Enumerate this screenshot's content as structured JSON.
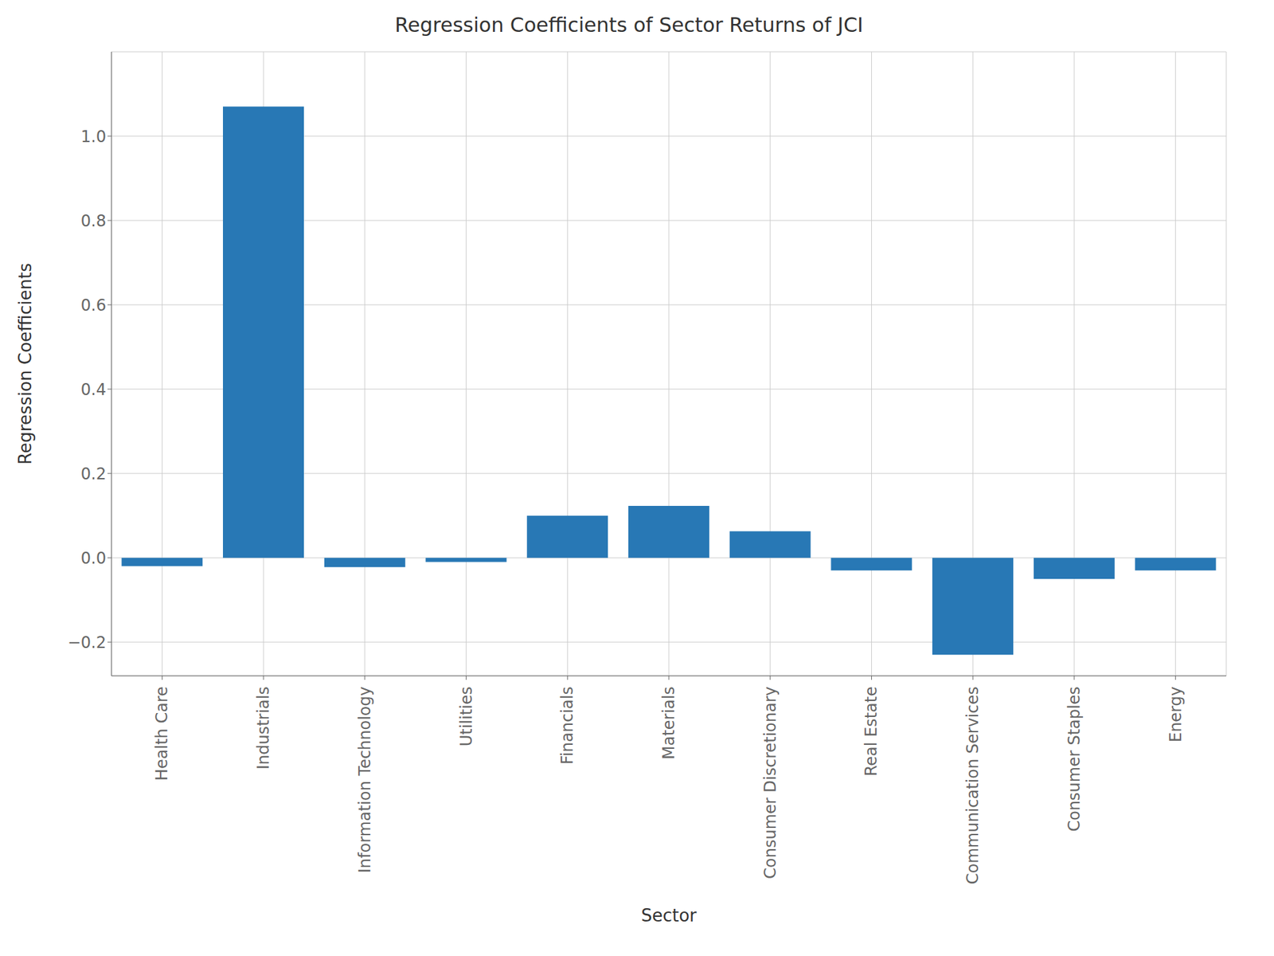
{
  "chart_data": {
    "type": "bar",
    "title": "Regression Coefficients of Sector Returns of JCI",
    "xlabel": "Sector",
    "ylabel": "Regression Coefficients",
    "categories": [
      "Health Care",
      "Industrials",
      "Information Technology",
      "Utilities",
      "Financials",
      "Materials",
      "Consumer Discretionary",
      "Real Estate",
      "Communication Services",
      "Consumer Staples",
      "Energy"
    ],
    "values": [
      -0.02,
      1.07,
      -0.022,
      -0.01,
      0.1,
      0.123,
      0.063,
      -0.03,
      -0.23,
      -0.05,
      -0.03
    ],
    "color": "#2878b5",
    "ylim": [
      -0.28,
      1.2
    ],
    "yticks": [
      {
        "value": -0.2,
        "label": "−0.2"
      },
      {
        "value": 0,
        "label": "0.0"
      },
      0.2,
      0.4,
      0.6,
      0.8,
      {
        "value": 1.0,
        "label": "1.0"
      }
    ],
    "grid": true
  }
}
